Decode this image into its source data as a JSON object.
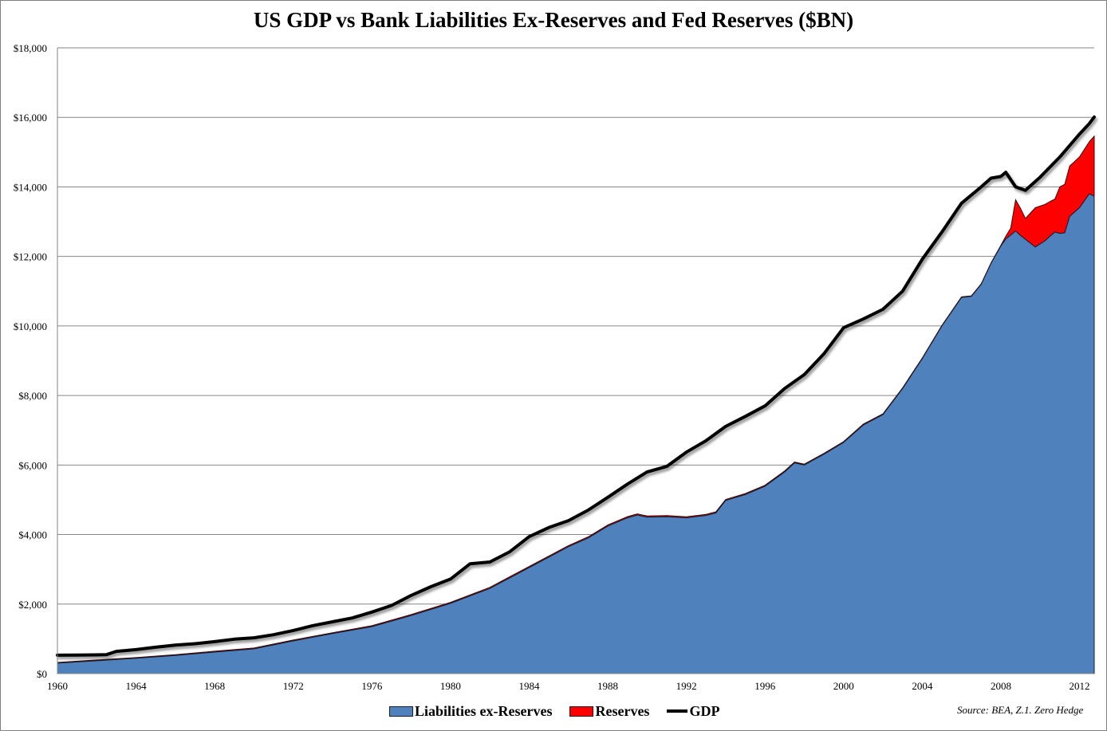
{
  "chart_data": {
    "type": "area",
    "title": "US GDP vs Bank Liabilities Ex-Reserves and Fed Reserves ($BN)",
    "xlabel": "",
    "ylabel": "",
    "xlim": [
      1960,
      2012.75
    ],
    "ylim": [
      0,
      18000
    ],
    "grid": true,
    "legend_position": "bottom",
    "y_ticks": [
      {
        "value": 0,
        "label": "$0"
      },
      {
        "value": 2000,
        "label": "$2,000"
      },
      {
        "value": 4000,
        "label": "$4,000"
      },
      {
        "value": 6000,
        "label": "$6,000"
      },
      {
        "value": 8000,
        "label": "$8,000"
      },
      {
        "value": 10000,
        "label": "$10,000"
      },
      {
        "value": 12000,
        "label": "$12,000"
      },
      {
        "value": 14000,
        "label": "$14,000"
      },
      {
        "value": 16000,
        "label": "$16,000"
      },
      {
        "value": 18000,
        "label": "$18,000"
      }
    ],
    "x_ticks": [
      "1960",
      "1964",
      "1968",
      "1972",
      "1976",
      "1980",
      "1984",
      "1988",
      "1992",
      "1996",
      "2000",
      "2004",
      "2008",
      "2012"
    ],
    "colors": {
      "liabilities": "#4f81bd",
      "reserves": "#ff0000",
      "gdp": "#000000",
      "grid": "#868686"
    },
    "series": [
      {
        "name": "Liabilities ex-Reserves",
        "kind": "stacked-area",
        "points": [
          [
            1960,
            300
          ],
          [
            1962,
            370
          ],
          [
            1964,
            440
          ],
          [
            1966,
            520
          ],
          [
            1968,
            620
          ],
          [
            1970,
            710
          ],
          [
            1972,
            940
          ],
          [
            1974,
            1150
          ],
          [
            1976,
            1350
          ],
          [
            1978,
            1670
          ],
          [
            1980,
            2020
          ],
          [
            1982,
            2450
          ],
          [
            1984,
            3050
          ],
          [
            1986,
            3650
          ],
          [
            1987,
            3900
          ],
          [
            1988,
            4240
          ],
          [
            1989,
            4480
          ],
          [
            1989.5,
            4560
          ],
          [
            1990,
            4500
          ],
          [
            1991,
            4510
          ],
          [
            1992,
            4480
          ],
          [
            1993,
            4550
          ],
          [
            1993.5,
            4620
          ],
          [
            1994,
            4980
          ],
          [
            1995,
            5150
          ],
          [
            1996,
            5390
          ],
          [
            1997,
            5800
          ],
          [
            1997.5,
            6060
          ],
          [
            1998,
            6000
          ],
          [
            1999,
            6310
          ],
          [
            2000,
            6650
          ],
          [
            2001,
            7150
          ],
          [
            2002,
            7450
          ],
          [
            2003,
            8200
          ],
          [
            2004,
            9060
          ],
          [
            2005,
            10000
          ],
          [
            2006,
            10820
          ],
          [
            2006.5,
            10850
          ],
          [
            2007,
            11200
          ],
          [
            2007.5,
            11800
          ],
          [
            2008,
            12300
          ],
          [
            2008.25,
            12500
          ],
          [
            2008.75,
            12730
          ],
          [
            2009,
            12600
          ],
          [
            2009.75,
            12270
          ],
          [
            2010.25,
            12450
          ],
          [
            2010.5,
            12580
          ],
          [
            2010.75,
            12700
          ],
          [
            2011,
            12660
          ],
          [
            2011.25,
            12680
          ],
          [
            2011.5,
            13150
          ],
          [
            2012,
            13400
          ],
          [
            2012.5,
            13800
          ],
          [
            2012.75,
            13730
          ]
        ]
      },
      {
        "name": "Reserves",
        "kind": "stacked-area",
        "points": [
          [
            1960,
            20
          ],
          [
            1970,
            25
          ],
          [
            1980,
            30
          ],
          [
            1990,
            35
          ],
          [
            2000,
            25
          ],
          [
            2007.5,
            15
          ],
          [
            2008,
            20
          ],
          [
            2008.25,
            80
          ],
          [
            2008.5,
            200
          ],
          [
            2008.75,
            900
          ],
          [
            2009,
            780
          ],
          [
            2009.25,
            600
          ],
          [
            2009.75,
            1130
          ],
          [
            2010.25,
            1050
          ],
          [
            2010.5,
            1000
          ],
          [
            2010.75,
            950
          ],
          [
            2011,
            1340
          ],
          [
            2011.5,
            1450
          ],
          [
            2012,
            1460
          ],
          [
            2012.5,
            1500
          ],
          [
            2012.75,
            1730
          ]
        ]
      },
      {
        "name": "GDP",
        "kind": "line",
        "points": [
          [
            1960,
            530
          ],
          [
            1961,
            535
          ],
          [
            1962,
            540
          ],
          [
            1962.5,
            545
          ],
          [
            1963,
            640
          ],
          [
            1964,
            690
          ],
          [
            1965,
            760
          ],
          [
            1966,
            820
          ],
          [
            1967,
            860
          ],
          [
            1968,
            920
          ],
          [
            1969,
            990
          ],
          [
            1970,
            1030
          ],
          [
            1971,
            1120
          ],
          [
            1972,
            1240
          ],
          [
            1973,
            1380
          ],
          [
            1974,
            1490
          ],
          [
            1975,
            1600
          ],
          [
            1976,
            1770
          ],
          [
            1977,
            1960
          ],
          [
            1978,
            2250
          ],
          [
            1979,
            2500
          ],
          [
            1980,
            2720
          ],
          [
            1981,
            3160
          ],
          [
            1982,
            3210
          ],
          [
            1983,
            3500
          ],
          [
            1984,
            3940
          ],
          [
            1985,
            4200
          ],
          [
            1986,
            4400
          ],
          [
            1987,
            4700
          ],
          [
            1988,
            5070
          ],
          [
            1989,
            5450
          ],
          [
            1990,
            5800
          ],
          [
            1991,
            5960
          ],
          [
            1992,
            6370
          ],
          [
            1993,
            6700
          ],
          [
            1994,
            7110
          ],
          [
            1995,
            7400
          ],
          [
            1996,
            7700
          ],
          [
            1997,
            8200
          ],
          [
            1998,
            8600
          ],
          [
            1999,
            9200
          ],
          [
            2000,
            9950
          ],
          [
            2001,
            10200
          ],
          [
            2002,
            10480
          ],
          [
            2003,
            11000
          ],
          [
            2004,
            11920
          ],
          [
            2005,
            12700
          ],
          [
            2006,
            13530
          ],
          [
            2007,
            14000
          ],
          [
            2007.5,
            14250
          ],
          [
            2008,
            14300
          ],
          [
            2008.25,
            14420
          ],
          [
            2008.75,
            14000
          ],
          [
            2009.25,
            13900
          ],
          [
            2010,
            14280
          ],
          [
            2011,
            14860
          ],
          [
            2012,
            15520
          ],
          [
            2012.5,
            15820
          ],
          [
            2012.75,
            16010
          ]
        ]
      }
    ],
    "source_note": "Source: BEA, Z.1. Zero Hedge"
  },
  "legend": {
    "items": [
      {
        "label": "Liabilities ex-Reserves"
      },
      {
        "label": "Reserves"
      },
      {
        "label": "GDP"
      }
    ]
  }
}
